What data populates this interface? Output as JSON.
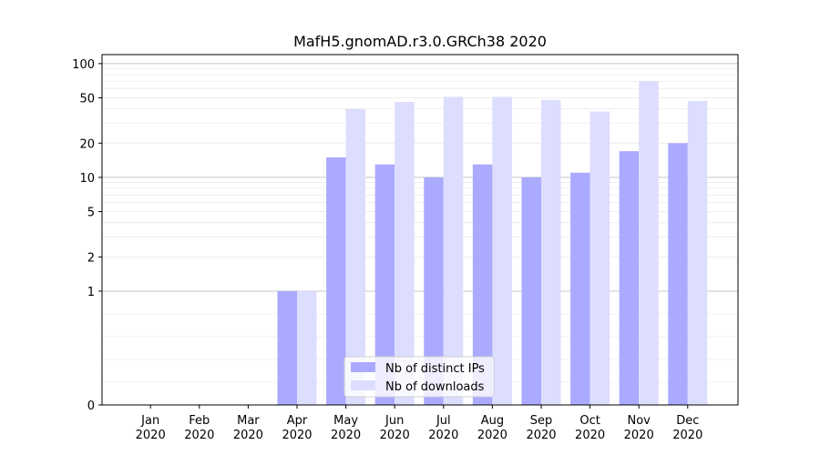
{
  "chart_data": {
    "type": "bar",
    "title": "MafH5.gnomAD.r3.0.GRCh38 2020",
    "xlabel": "",
    "ylabel": "",
    "yscale": "symlog",
    "ylim": [
      0,
      120
    ],
    "yticks": [
      0,
      1,
      2,
      5,
      10,
      20,
      50,
      100
    ],
    "ytick_labels": [
      "0",
      "1",
      "2",
      "5",
      "10",
      "20",
      "50",
      "100"
    ],
    "categories": [
      "Jan\n2020",
      "Feb\n2020",
      "Mar\n2020",
      "Apr\n2020",
      "May\n2020",
      "Jun\n2020",
      "Jul\n2020",
      "Aug\n2020",
      "Sep\n2020",
      "Oct\n2020",
      "Nov\n2020",
      "Dec\n2020"
    ],
    "series": [
      {
        "name": "Nb of distinct IPs",
        "color": "#aaaaff",
        "values": [
          0,
          0,
          0,
          1,
          15,
          13,
          10,
          13,
          10,
          11,
          17,
          20
        ]
      },
      {
        "name": "Nb of downloads",
        "color": "#ddddff",
        "values": [
          0,
          0,
          0,
          1,
          40,
          46,
          51,
          51,
          48,
          38,
          70,
          47
        ]
      }
    ],
    "grid": true,
    "legend_position": "bottom-center"
  }
}
